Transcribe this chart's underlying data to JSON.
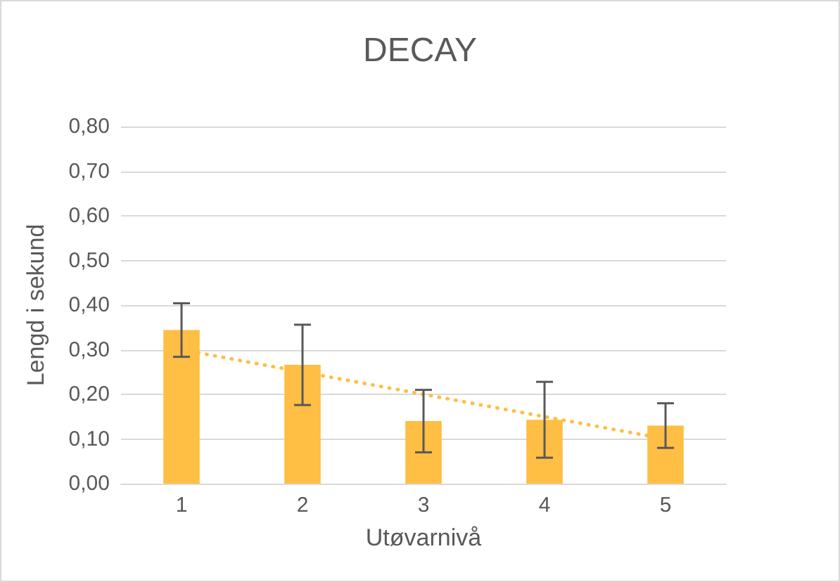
{
  "chart_data": {
    "type": "bar",
    "title": "DECAY",
    "xlabel": "Utøvarnivå",
    "ylabel": "Lengd i sekund",
    "categories": [
      "1",
      "2",
      "3",
      "4",
      "5"
    ],
    "series": [
      {
        "color": "#ffbe44",
        "values": [
          0.344,
          0.266,
          0.14,
          0.143,
          0.13
        ],
        "errors": [
          0.06,
          0.09,
          0.07,
          0.085,
          0.05
        ]
      },
      {
        "type": "line",
        "color": "#ffbe44",
        "x": [
          "1",
          "5"
        ],
        "values": [
          0.3,
          0.1
        ],
        "line_style": "dotted"
      }
    ],
    "ylim": [
      0,
      0.8
    ],
    "yticks": [
      {
        "value": 0,
        "label": "0,00"
      },
      {
        "value": 0.1,
        "label": "0,10"
      },
      {
        "value": 0.2,
        "label": "0,20"
      },
      {
        "value": 0.3,
        "label": "0,30"
      },
      {
        "value": 0.4,
        "label": "0,40"
      },
      {
        "value": 0.5,
        "label": "0,50"
      },
      {
        "value": 0.6,
        "label": "0,60"
      },
      {
        "value": 0.7,
        "label": "0,70"
      },
      {
        "value": 0.8,
        "label": "0,80"
      }
    ],
    "grid": "y"
  }
}
